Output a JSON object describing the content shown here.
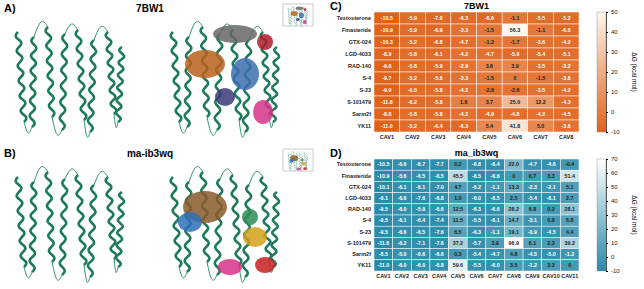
{
  "structures": [
    {
      "panel": "A)",
      "title": "7BW1"
    },
    {
      "panel": "B)",
      "title": "ma-ib3wq"
    }
  ],
  "chart_data": [
    {
      "type": "heatmap",
      "title": "7BW1",
      "annotations": [
        "C)"
      ],
      "x": [
        "CAV1",
        "CAV2",
        "CAV3",
        "CAV4",
        "CAV5",
        "CAV6",
        "CAV7",
        "CAV8"
      ],
      "y": [
        "Testosterone",
        "Finasteride",
        "GTX-024",
        "LGD-4033",
        "RAD-140",
        "S-4",
        "S-23",
        "S-101479",
        "Sarm2f",
        "YK11"
      ],
      "values": [
        [
          -10.5,
          -5.9,
          -7.0,
          -6.3,
          -6.6,
          -1.1,
          -5.5,
          -5.2
        ],
        [
          -10.9,
          -5.9,
          -6.9,
          -3.3,
          -1.5,
          56.3,
          -1.1,
          -6.0
        ],
        [
          -10.3,
          -5.2,
          -6.8,
          -4.7,
          -1.2,
          -1.7,
          -3.6,
          -4.2
        ],
        [
          -8.9,
          -5.8,
          -6.1,
          -4.2,
          -4.7,
          -5.9,
          -5.4,
          -5.1
        ],
        [
          -9.8,
          -5.8,
          -5.9,
          -2.9,
          3.6,
          3.9,
          -3.5,
          -3.2
        ],
        [
          -9.7,
          -5.2,
          -5.6,
          -3.3,
          -1.5,
          0,
          -1.5,
          -3.6
        ],
        [
          -9.9,
          -6.0,
          -5.8,
          -4.2,
          -2.6,
          -2.6,
          -3.5,
          -4.2
        ],
        [
          -11.8,
          -6.2,
          -5.8,
          1.6,
          3.7,
          25.0,
          12.2,
          -4.3
        ],
        [
          -8.8,
          -5.8,
          -5.8,
          -4.2,
          -4.9,
          -4.8,
          -4.2,
          -4.5
        ],
        [
          -11.0,
          -5.2,
          -6.4,
          -6.3,
          5.4,
          41.8,
          5.0,
          -3.6
        ]
      ],
      "value_labels": [
        [
          "-10.5",
          "-5.9",
          "-7.0",
          "-6.3",
          "-6.6",
          "-1.1",
          "-5.5",
          "-5.2"
        ],
        [
          "-10.9",
          "-5.9",
          "-6.9",
          "-3.3",
          "-1.5",
          "56.3",
          "-1.1",
          "-6.0"
        ],
        [
          "-10.3",
          "-5.2",
          "-6.8",
          "-4.7",
          "-1.2",
          "-1.7",
          "-3.6",
          "-4.2"
        ],
        [
          "-8.9",
          "-5.8",
          "-6.1",
          "-4.2",
          "-4.7",
          "-5.9",
          "-5.4",
          "-5.1"
        ],
        [
          "-9.8",
          "-5.8",
          "-5.9",
          "-2.9",
          "3.6",
          "3.9",
          "-3.5",
          "-3.2"
        ],
        [
          "-9.7",
          "-5.2",
          "-5.6",
          "-3.3",
          "-1.5",
          "0",
          "-1.5",
          "-3.6"
        ],
        [
          "-9.9",
          "-6.0",
          "-5.8",
          "-4.2",
          "-2.6",
          "-2.6",
          "-3.5",
          "-4.2"
        ],
        [
          "-11.8",
          "-6.2",
          "-5.8",
          "1.6",
          "3.7",
          "25.0",
          "12.2",
          "-4.3"
        ],
        [
          "-8.8",
          "-5.8",
          "-5.8",
          "-4.2",
          "-4.9",
          "-4.8",
          "-4.2",
          "-4.5"
        ],
        [
          "-11.0",
          "-5.2",
          "-6.4",
          "-6.3",
          "5.4",
          "41.8",
          "5.0",
          "-3.6"
        ]
      ],
      "data_labels": true,
      "colorbar": {
        "label": "ΔG (kcal mol)",
        "range": [
          -10,
          50
        ],
        "ticks": [
          -10,
          0,
          10,
          20,
          30,
          40,
          50
        ],
        "colors": [
          "#e0611a",
          "#fff7ee"
        ]
      }
    },
    {
      "type": "heatmap",
      "title": "ma_ib3wq",
      "annotations": [
        "D)"
      ],
      "x": [
        "CAV1",
        "CAV2",
        "CAV3",
        "CAV4",
        "CAV5",
        "CAV6",
        "CAV7",
        "CAV8",
        "CAV9",
        "CAV10",
        "CAV11"
      ],
      "y": [
        "Testosterone",
        "Finasteride",
        "GTX-024",
        "LGD-4033",
        "RAD-140",
        "S-4",
        "S-23",
        "S-101479",
        "Sarm2f",
        "YK11"
      ],
      "values": [
        [
          -10.5,
          -6.6,
          -6.7,
          -7.7,
          0.2,
          -6.8,
          -6.4,
          22.0,
          -4.7,
          -4.6,
          -0.4
        ],
        [
          -10.9,
          -5.6,
          -6.5,
          -6.5,
          45.5,
          -8.5,
          -6.6,
          0,
          0.7,
          3.3,
          51.4
        ],
        [
          -10.1,
          -6.1,
          -6.1,
          -7.0,
          4.7,
          -6.2,
          -1.1,
          13.3,
          -2.3,
          -2.1,
          5.1
        ],
        [
          -9.1,
          -6.6,
          -7.6,
          -6.8,
          1.0,
          -6.0,
          -6.5,
          2.5,
          -5.4,
          -6.1,
          2.7
        ],
        [
          -9.5,
          -6.0,
          -5.9,
          -6.6,
          12.5,
          -6.3,
          -6.6,
          28.2,
          6.8,
          0.2,
          28.1
        ],
        [
          -9.5,
          -6.1,
          -6.4,
          -7.4,
          11.5,
          -5.5,
          -6.1,
          14.7,
          -3.1,
          0.8,
          6.8
        ],
        [
          -9.5,
          -6.6,
          -6.5,
          -7.6,
          6.5,
          -6.3,
          -1.1,
          19.1,
          -0.9,
          -4.5,
          4.4
        ],
        [
          -11.6,
          -6.2,
          -7.1,
          -7.6,
          37.2,
          -5.7,
          3.9,
          96.9,
          6.1,
          2.3,
          39.2
        ],
        [
          -8.5,
          -5.0,
          -6.6,
          -6.6,
          0.3,
          -5.4,
          -4.7,
          4.8,
          -4.5,
          -5.0,
          -1.2
        ],
        [
          -11.0,
          -6.0,
          -6.0,
          -6.8,
          59.6,
          -5.5,
          -6.0,
          3.5,
          -1.2,
          3.3,
          0
        ]
      ],
      "value_labels": [
        [
          "-10.5",
          "-6.6",
          "-6.7",
          "-7.7",
          "0.2",
          "-6.8",
          "-6.4",
          "22.0",
          "-4.7",
          "-4.6",
          "-0.4"
        ],
        [
          "-10.9",
          "-5.6",
          "-6.5",
          "-6.5",
          "45.5",
          "-8.5",
          "-6.6",
          "0",
          "0.7",
          "3.3",
          "51.4"
        ],
        [
          "-10.1",
          "-6.1",
          "-6.1",
          "-7.0",
          "4.7",
          "-6.2",
          "-1.1",
          "13.3",
          "-2.3",
          "-2.1",
          "5.1"
        ],
        [
          "-9.1",
          "-6.6",
          "-7.6",
          "-6.8",
          "1.0",
          "-6.0",
          "-6.5",
          "2.5",
          "-5.4",
          "-6.1",
          "2.7"
        ],
        [
          "-9.5",
          "-6.0",
          "-5.9",
          "-6.6",
          "12.5",
          "-6.3",
          "-6.6",
          "28.2",
          "6.8",
          "0.2",
          "28.1"
        ],
        [
          "-9.5",
          "-6.1",
          "-6.4",
          "-7.4",
          "11.5",
          "-5.5",
          "-6.1",
          "14.7",
          "-3.1",
          "0.8",
          "6.8"
        ],
        [
          "-9.5",
          "-6.6",
          "-6.5",
          "-7.6",
          "6.5",
          "-6.3",
          "-1.1",
          "19.1",
          "-0.9",
          "-4.5",
          "4.4"
        ],
        [
          "-11.6",
          "-6.2",
          "-7.1",
          "-7.6",
          "37.2",
          "-5.7",
          "3.9",
          "96.9",
          "6.1",
          "2.3",
          "39.2"
        ],
        [
          "-8.5",
          "-5.0",
          "-6.6",
          "-6.6",
          "0.3",
          "-5.4",
          "-4.7",
          "4.8",
          "-4.5",
          "-5.0",
          "-1.2"
        ],
        [
          "-11.0",
          "-6.0",
          "-6.0",
          "-6.8",
          "59.6",
          "-5.5",
          "-6.0",
          "3.5",
          "-1.2",
          "3.3",
          "0"
        ]
      ],
      "data_labels": true,
      "colorbar": {
        "label": "ΔG (kcal mol)",
        "range": [
          -10,
          70
        ],
        "ticks": [
          -10,
          0,
          10,
          20,
          30,
          40,
          50,
          60,
          70
        ],
        "colors": [
          "#2a8aa8",
          "#ffffff"
        ]
      }
    }
  ]
}
